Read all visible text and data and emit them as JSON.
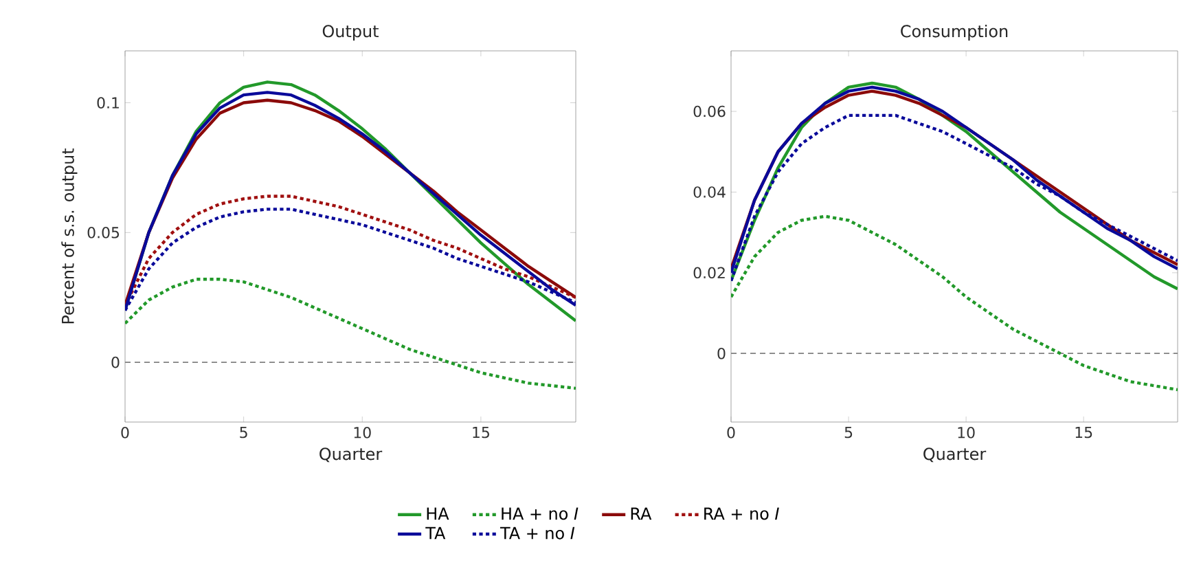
{
  "chart_data": [
    {
      "type": "line",
      "title": "Output",
      "xlabel": "Quarter",
      "ylabel": "Percent of s.s. output",
      "x": [
        0,
        1,
        2,
        3,
        4,
        5,
        6,
        7,
        8,
        9,
        10,
        11,
        12,
        13,
        14,
        15,
        16,
        17,
        18,
        19
      ],
      "xlim": [
        0,
        19
      ],
      "xticks": [
        0,
        5,
        10,
        15
      ],
      "ylim": [
        -0.023,
        0.12
      ],
      "yticks": [
        0,
        0.05,
        0.1
      ],
      "legend": "bottom",
      "line_style": "solid",
      "ref_lines": [
        {
          "axis": "y",
          "value": 0,
          "color": "#808080",
          "line_style": "dashed"
        }
      ],
      "series": [
        {
          "name": "HA",
          "color": "#22992a",
          "values": [
            0.02,
            0.05,
            0.072,
            0.089,
            0.1,
            0.106,
            0.108,
            0.107,
            0.103,
            0.097,
            0.09,
            0.082,
            0.073,
            0.064,
            0.055,
            0.046,
            0.038,
            0.03,
            0.023,
            0.016
          ]
        },
        {
          "name": "HA + no *I*",
          "color": "#22992a",
          "line_style": "dashed",
          "values": [
            0.015,
            0.024,
            0.029,
            0.032,
            0.032,
            0.031,
            0.028,
            0.025,
            0.021,
            0.017,
            0.013,
            0.009,
            0.005,
            0.002,
            -0.001,
            -0.004,
            -0.006,
            -0.008,
            -0.009,
            -0.01
          ]
        },
        {
          "name": "RA",
          "color": "#8b0a0a",
          "values": [
            0.022,
            0.05,
            0.071,
            0.086,
            0.096,
            0.1,
            0.101,
            0.1,
            0.097,
            0.093,
            0.087,
            0.08,
            0.073,
            0.066,
            0.058,
            0.051,
            0.044,
            0.037,
            0.031,
            0.025
          ]
        },
        {
          "name": "RA + no *I*",
          "color": "#a01010",
          "line_style": "dashed",
          "values": [
            0.022,
            0.04,
            0.05,
            0.057,
            0.061,
            0.063,
            0.064,
            0.064,
            0.062,
            0.06,
            0.057,
            0.054,
            0.051,
            0.047,
            0.044,
            0.04,
            0.036,
            0.033,
            0.029,
            0.025
          ]
        },
        {
          "name": "TA",
          "color": "#0a0a9a",
          "values": [
            0.02,
            0.05,
            0.072,
            0.088,
            0.098,
            0.103,
            0.104,
            0.103,
            0.099,
            0.094,
            0.088,
            0.081,
            0.073,
            0.065,
            0.057,
            0.049,
            0.042,
            0.035,
            0.028,
            0.022
          ]
        },
        {
          "name": "TA + no *I*",
          "color": "#0a0a9a",
          "line_style": "dashed",
          "values": [
            0.02,
            0.036,
            0.046,
            0.052,
            0.056,
            0.058,
            0.059,
            0.059,
            0.057,
            0.055,
            0.053,
            0.05,
            0.047,
            0.044,
            0.04,
            0.037,
            0.034,
            0.031,
            0.027,
            0.023
          ]
        }
      ]
    },
    {
      "type": "line",
      "title": "Consumption",
      "xlabel": "Quarter",
      "x": [
        0,
        1,
        2,
        3,
        4,
        5,
        6,
        7,
        8,
        9,
        10,
        11,
        12,
        13,
        14,
        15,
        16,
        17,
        18,
        19
      ],
      "xlim": [
        0,
        19
      ],
      "xticks": [
        0,
        5,
        10,
        15
      ],
      "ylim": [
        -0.017,
        0.075
      ],
      "yticks": [
        0,
        0.02,
        0.04,
        0.06
      ],
      "line_style": "solid",
      "ref_lines": [
        {
          "axis": "y",
          "value": 0,
          "color": "#808080",
          "line_style": "dashed"
        }
      ],
      "series": [
        {
          "color": "#22992a",
          "values": [
            0.018,
            0.033,
            0.046,
            0.056,
            0.062,
            0.066,
            0.067,
            0.066,
            0.063,
            0.059,
            0.055,
            0.05,
            0.045,
            0.04,
            0.035,
            0.031,
            0.027,
            0.023,
            0.019,
            0.016
          ]
        },
        {
          "color": "#22992a",
          "line_style": "dashed",
          "values": [
            0.014,
            0.024,
            0.03,
            0.033,
            0.034,
            0.033,
            0.03,
            0.027,
            0.023,
            0.019,
            0.014,
            0.01,
            0.006,
            0.003,
            0.0,
            -0.003,
            -0.005,
            -0.007,
            -0.008,
            -0.009
          ]
        },
        {
          "color": "#8b0a0a",
          "values": [
            0.021,
            0.038,
            0.05,
            0.057,
            0.061,
            0.064,
            0.065,
            0.064,
            0.062,
            0.059,
            0.056,
            0.052,
            0.048,
            0.044,
            0.04,
            0.036,
            0.032,
            0.028,
            0.025,
            0.022
          ]
        },
        {
          "color": "#0a0a9a",
          "values": [
            0.02,
            0.038,
            0.05,
            0.057,
            0.062,
            0.065,
            0.066,
            0.065,
            0.063,
            0.06,
            0.056,
            0.052,
            0.048,
            0.043,
            0.039,
            0.035,
            0.031,
            0.028,
            0.024,
            0.021
          ]
        },
        {
          "color": "#0a0a9a",
          "line_style": "dashed",
          "values": [
            0.018,
            0.034,
            0.045,
            0.052,
            0.056,
            0.059,
            0.059,
            0.059,
            0.057,
            0.055,
            0.052,
            0.049,
            0.046,
            0.042,
            0.039,
            0.035,
            0.032,
            0.029,
            0.026,
            0.023
          ]
        }
      ]
    }
  ]
}
